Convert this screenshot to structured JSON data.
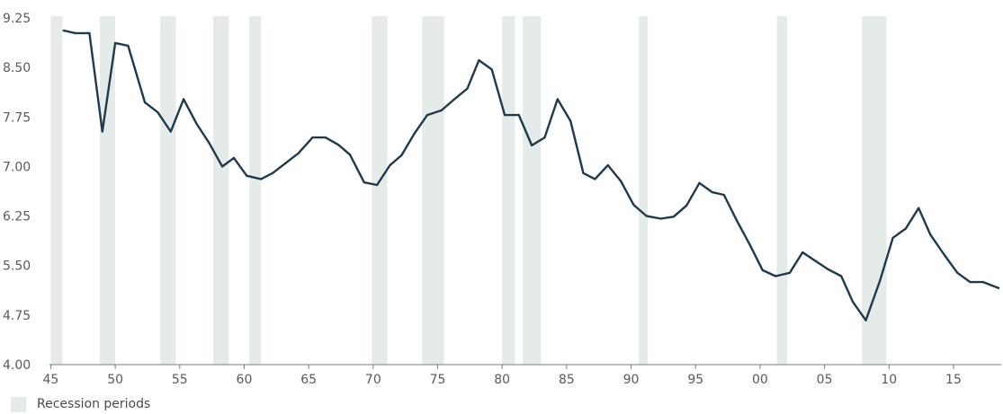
{
  "chart_data": {
    "type": "line",
    "title": "",
    "xlabel": "",
    "ylabel": "",
    "xlim": [
      1944.9,
      2018.7
    ],
    "ylim": [
      4.0,
      9.25
    ],
    "y_ticks": [
      "4.00",
      "4.75",
      "5.50",
      "6.25",
      "7.00",
      "7.75",
      "8.50",
      "9.25"
    ],
    "y_tick_values": [
      4.0,
      4.75,
      5.5,
      6.25,
      7.0,
      7.75,
      8.5,
      9.25
    ],
    "x_ticks": [
      "45",
      "50",
      "55",
      "60",
      "65",
      "70",
      "75",
      "80",
      "85",
      "90",
      "95",
      "00",
      "05",
      "10",
      "15"
    ],
    "x_tick_values": [
      1945,
      1950,
      1955,
      1960,
      1965,
      1970,
      1975,
      1980,
      1985,
      1990,
      1995,
      2000,
      2005,
      2010,
      2015
    ],
    "grid": false,
    "line_color": "#1f3a4d",
    "recession_color": "#e5ebe8",
    "recessions": [
      [
        1945.0,
        1945.9
      ],
      [
        1948.8,
        1950.0
      ],
      [
        1953.5,
        1954.7
      ],
      [
        1957.6,
        1958.8
      ],
      [
        1960.4,
        1961.3
      ],
      [
        1969.9,
        1971.1
      ],
      [
        1973.8,
        1975.5
      ],
      [
        1980.0,
        1981.0
      ],
      [
        1981.6,
        1983.0
      ],
      [
        1990.6,
        1991.3
      ],
      [
        2001.3,
        2002.1
      ],
      [
        2007.9,
        2009.8
      ]
    ],
    "legend": {
      "position": "bottom-left",
      "label": "Recession periods"
    },
    "series": [
      {
        "points": [
          [
            1946.0,
            9.06
          ],
          [
            1946.9,
            9.02
          ],
          [
            1948.0,
            9.02
          ],
          [
            1949.0,
            7.53
          ],
          [
            1950.0,
            8.87
          ],
          [
            1951.0,
            8.83
          ],
          [
            1952.3,
            7.97
          ],
          [
            1953.3,
            7.82
          ],
          [
            1954.3,
            7.53
          ],
          [
            1955.3,
            8.02
          ],
          [
            1956.3,
            7.65
          ],
          [
            1957.3,
            7.35
          ],
          [
            1958.3,
            7.0
          ],
          [
            1959.2,
            7.13
          ],
          [
            1960.2,
            6.86
          ],
          [
            1961.3,
            6.81
          ],
          [
            1962.2,
            6.9
          ],
          [
            1963.2,
            7.05
          ],
          [
            1964.2,
            7.2
          ],
          [
            1965.3,
            7.44
          ],
          [
            1966.3,
            7.44
          ],
          [
            1967.3,
            7.33
          ],
          [
            1968.2,
            7.18
          ],
          [
            1969.3,
            6.76
          ],
          [
            1970.3,
            6.72
          ],
          [
            1971.3,
            7.02
          ],
          [
            1972.2,
            7.17
          ],
          [
            1973.2,
            7.5
          ],
          [
            1974.2,
            7.78
          ],
          [
            1975.3,
            7.85
          ],
          [
            1976.3,
            8.02
          ],
          [
            1977.3,
            8.18
          ],
          [
            1978.2,
            8.61
          ],
          [
            1979.2,
            8.47
          ],
          [
            1980.2,
            7.78
          ],
          [
            1981.3,
            7.78
          ],
          [
            1982.3,
            7.32
          ],
          [
            1983.3,
            7.44
          ],
          [
            1984.3,
            8.02
          ],
          [
            1985.3,
            7.69
          ],
          [
            1986.3,
            6.9
          ],
          [
            1987.2,
            6.81
          ],
          [
            1988.2,
            7.02
          ],
          [
            1989.2,
            6.78
          ],
          [
            1990.2,
            6.42
          ],
          [
            1991.2,
            6.25
          ],
          [
            1992.3,
            6.21
          ],
          [
            1993.3,
            6.24
          ],
          [
            1994.3,
            6.41
          ],
          [
            1995.3,
            6.75
          ],
          [
            1996.3,
            6.61
          ],
          [
            1997.2,
            6.57
          ],
          [
            1998.2,
            6.18
          ],
          [
            1999.2,
            5.82
          ],
          [
            2000.2,
            5.43
          ],
          [
            2001.2,
            5.34
          ],
          [
            2002.3,
            5.39
          ],
          [
            2003.3,
            5.7
          ],
          [
            2004.3,
            5.57
          ],
          [
            2005.3,
            5.44
          ],
          [
            2006.3,
            5.34
          ],
          [
            2007.2,
            4.95
          ],
          [
            2008.2,
            4.67
          ],
          [
            2009.3,
            5.27
          ],
          [
            2010.3,
            5.92
          ],
          [
            2011.3,
            6.06
          ],
          [
            2012.3,
            6.37
          ],
          [
            2013.2,
            5.97
          ],
          [
            2014.3,
            5.66
          ],
          [
            2015.3,
            5.39
          ],
          [
            2016.3,
            5.25
          ],
          [
            2017.3,
            5.25
          ],
          [
            2018.5,
            5.16
          ]
        ]
      }
    ]
  }
}
